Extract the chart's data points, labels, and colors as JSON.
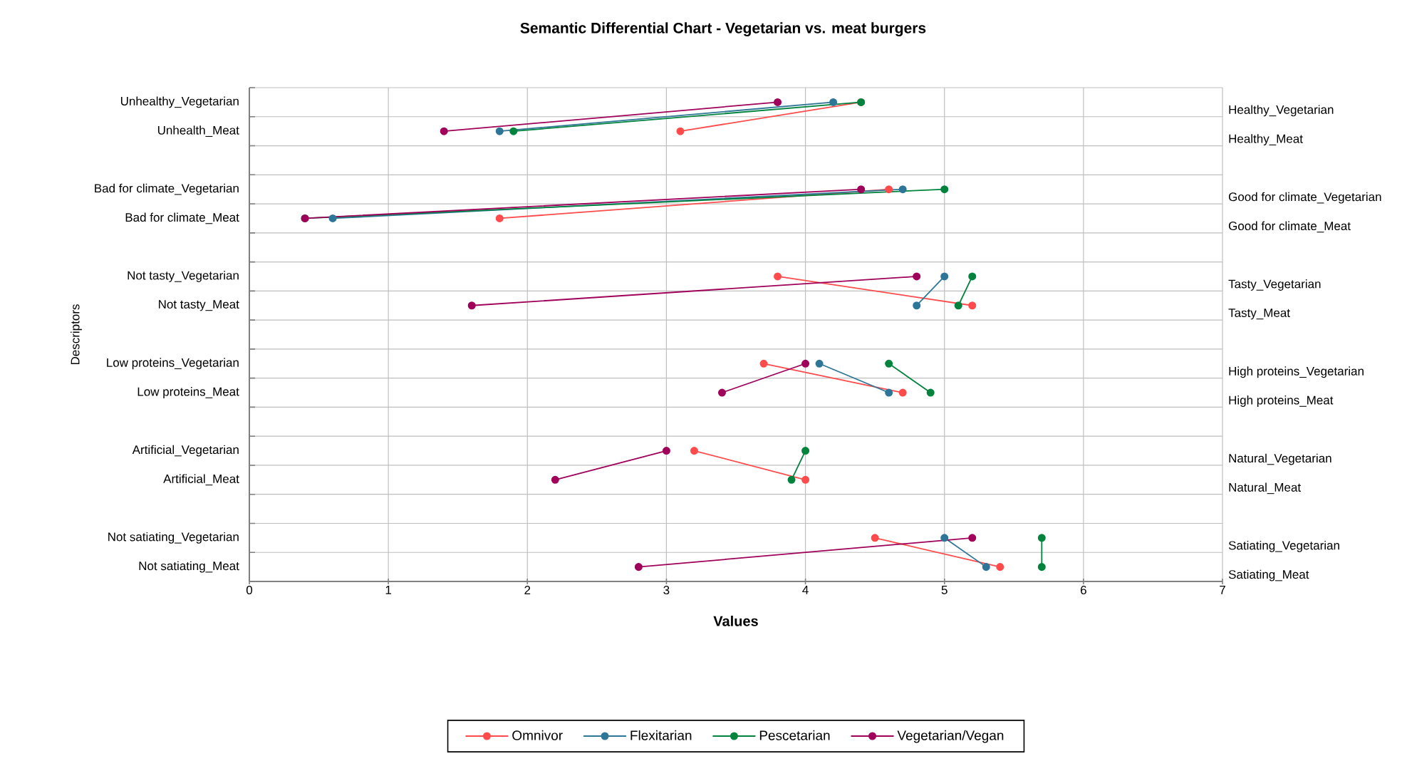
{
  "chart_data": {
    "type": "line",
    "orientation": "horizontal",
    "title": "Semantic Differential Chart - Vegetarian vs. meat burgers",
    "xlabel": "Values",
    "ylabel": "Descriptors",
    "categories": [
      "Unhealthy_Vegetarian",
      "Unhealth_Meat",
      null,
      "Bad for climate_Vegetarian",
      "Bad for climate_Meat",
      null,
      "Not tasty_Vegetarian",
      "Not tasty_Meat",
      null,
      "Low proteins_Vegetarian",
      "Low proteins_Meat",
      null,
      "Artificial_Vegetarian",
      "Artificial_Meat",
      null,
      "Not satiating_Vegetarian",
      "Not satiating_Meat"
    ],
    "y2_categories": [
      "Healthy_Vegetarian",
      "Healthy_Meat",
      null,
      "Good for climate_Vegetarian",
      "Good for climate_Meat",
      null,
      "Tasty_Vegetarian",
      "Tasty_Meat",
      null,
      "High proteins_Vegetarian",
      "High proteins_Meat",
      null,
      "Natural_Vegetarian",
      "Natural_Meat",
      null,
      "Satiating_Vegetarian",
      "Satiating_Meat"
    ],
    "series": [
      {
        "name": "Omnivor",
        "color": "#ff4b4b",
        "values": [
          4.4,
          3.1,
          null,
          4.6,
          1.8,
          null,
          3.8,
          5.2,
          null,
          3.7,
          4.7,
          null,
          3.2,
          4.0,
          null,
          4.5,
          5.4
        ]
      },
      {
        "name": "Flexitarian",
        "color": "#2e7698",
        "values": [
          4.2,
          1.8,
          null,
          4.7,
          0.6,
          null,
          5.0,
          4.8,
          null,
          4.1,
          4.6,
          null,
          null,
          null,
          null,
          5.0,
          5.3
        ]
      },
      {
        "name": "Pescetarian",
        "color": "#00843d",
        "values": [
          4.4,
          1.9,
          null,
          5.0,
          0.4,
          null,
          5.2,
          5.1,
          null,
          4.6,
          4.9,
          null,
          4.0,
          3.9,
          null,
          5.7,
          5.7
        ]
      },
      {
        "name": "Vegetarian/Vegan",
        "color": "#a0005a",
        "values": [
          3.8,
          1.4,
          null,
          4.4,
          0.4,
          null,
          4.8,
          1.6,
          null,
          4.0,
          3.4,
          null,
          3.0,
          2.2,
          null,
          5.2,
          2.8
        ]
      }
    ],
    "xlim": [
      0,
      7
    ],
    "xticks": [
      0,
      1,
      2,
      3,
      4,
      5,
      6,
      7
    ],
    "tick_labels": "xy",
    "grid": true,
    "legend": "bottom",
    "marker": "circle",
    "line_style": "solid"
  }
}
